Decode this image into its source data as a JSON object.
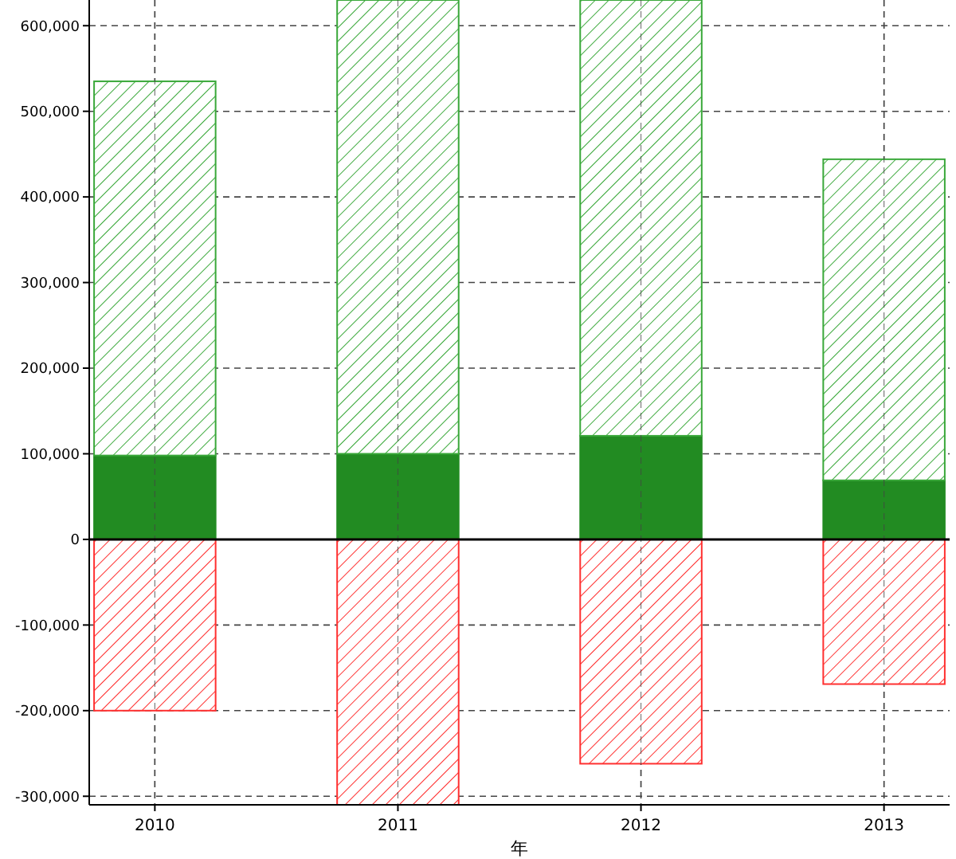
{
  "chart_data": {
    "type": "bar",
    "stacked": true,
    "xlabel": "年",
    "categories": [
      "2010",
      "2011",
      "2012",
      "2013"
    ],
    "series": [
      {
        "color": "#228b22",
        "values": [
          98000,
          100000,
          121000,
          69000
        ]
      },
      {
        "color": "#3aa83a",
        "values": [
          437000,
          530000,
          509000,
          375000
        ]
      },
      {
        "color": "#ff3030",
        "values": [
          -200000,
          -310000,
          -262000,
          -169000
        ]
      }
    ],
    "ylim": [
      -310000,
      630000
    ],
    "yticks": [
      {
        "value": -300000,
        "label": "-300,000"
      },
      {
        "value": -200000,
        "label": "-200,000"
      },
      {
        "value": -100000,
        "label": "-100,000"
      },
      0,
      {
        "value": 100000,
        "label": "100,000"
      },
      {
        "value": 200000,
        "label": "200,000"
      },
      {
        "value": 300000,
        "label": "300,000"
      },
      {
        "value": 400000,
        "label": "400,000"
      },
      {
        "value": 500000,
        "label": "500,000"
      },
      {
        "value": 600000,
        "label": "600,000"
      }
    ],
    "grid": true
  }
}
